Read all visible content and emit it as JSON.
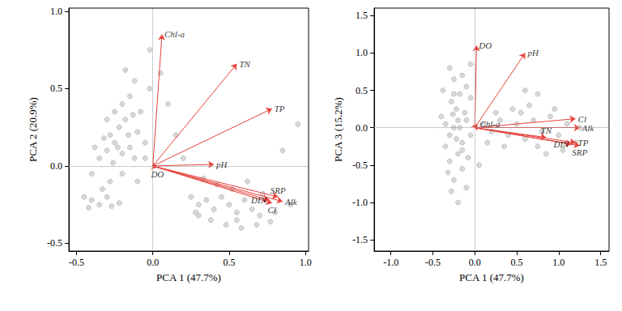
{
  "chart_data": [
    {
      "type": "scatter",
      "xlabel": "PCA 1 (47.7%)",
      "ylabel": "PCA 2 (20.9%)",
      "xlim": [
        -0.55,
        1.02
      ],
      "ylim": [
        -0.55,
        1.02
      ],
      "xticks": [
        -0.5,
        {
          "value": 0,
          "label": "0.0"
        },
        0.5,
        {
          "value": 1,
          "label": "1.0"
        }
      ],
      "yticks": [
        -0.5,
        {
          "value": 0,
          "label": "0.0"
        },
        0.5,
        {
          "value": 1,
          "label": "1.0"
        }
      ],
      "series": [
        {
          "type": "scatter",
          "marker": "circle",
          "color": "#d4d4d4",
          "x": [
            -0.3,
            -0.25,
            -0.2,
            -0.28,
            -0.15,
            -0.22,
            -0.18,
            -0.12,
            -0.26,
            -0.32,
            -0.1,
            -0.05,
            -0.2,
            -0.15,
            -0.08,
            -0.25,
            -0.3,
            -0.35,
            -0.38,
            -0.02,
            -0.12,
            -0.02,
            0.05,
            -0.18,
            -0.4,
            -0.35,
            -0.3,
            -0.42,
            -0.27,
            -0.22,
            -0.45,
            -0.33,
            -0.28,
            -0.4,
            -0.2,
            0.25,
            0.3,
            0.35,
            0.4,
            0.45,
            0.5,
            0.55,
            0.6,
            0.65,
            0.7,
            0.38,
            0.48,
            0.58,
            0.3,
            0.42,
            0.52,
            0.62,
            0.72,
            0.8,
            0.9,
            0.33,
            0.28,
            0.68,
            0.55,
            0.77,
            0.95,
            0.85,
            0.15,
            0.1,
            0.2,
            -0.1,
            -0.05,
            -0.16,
            -0.23,
            -0.13
          ],
          "y": [
            0.1,
            0.15,
            0.08,
            0.2,
            0.12,
            0.25,
            0.3,
            0.05,
            0.02,
            0.18,
            0.22,
            0.15,
            0.4,
            0.45,
            0.35,
            0.35,
            0.3,
            0.05,
            0.12,
            0.5,
            0.55,
            0.75,
            0.6,
            0.62,
            -0.22,
            -0.25,
            -0.2,
            -0.27,
            -0.26,
            -0.24,
            -0.2,
            -0.15,
            -0.1,
            -0.05,
            -0.05,
            -0.2,
            -0.25,
            -0.22,
            -0.28,
            -0.2,
            -0.25,
            -0.3,
            -0.22,
            -0.28,
            -0.32,
            -0.35,
            -0.38,
            -0.4,
            -0.32,
            -0.12,
            -0.15,
            -0.1,
            -0.18,
            -0.3,
            -0.25,
            -0.08,
            -0.3,
            -0.38,
            -0.35,
            -0.36,
            0.27,
            0.1,
            0.2,
            0.4,
            0.05,
            -0.1,
            0.05,
            0.2,
            0.12,
            0.33
          ]
        },
        {
          "type": "arrow",
          "color": "#e8413c",
          "names": [
            "Chl-a",
            "TN",
            "TP",
            "pH",
            "DO",
            "DIN",
            "SRP",
            "Cl",
            "Alk"
          ],
          "x": [
            0.06,
            0.55,
            0.78,
            0.4,
            0.03,
            0.76,
            0.82,
            0.78,
            0.85
          ],
          "y": [
            0.85,
            0.66,
            0.37,
            0.01,
            -0.01,
            -0.22,
            -0.2,
            -0.24,
            -0.23
          ]
        }
      ]
    },
    {
      "type": "scatter",
      "xlabel": "PCA 1 (47.7%)",
      "ylabel": "PCA 3 (15.2%)",
      "xlim": [
        -1.2,
        1.6
      ],
      "ylim": [
        -1.65,
        1.6
      ],
      "xticks": [
        {
          "value": -1,
          "label": "-1.0"
        },
        -0.5,
        {
          "value": 0,
          "label": "0.0"
        },
        0.5,
        {
          "value": 1,
          "label": "1.0"
        },
        1.5
      ],
      "yticks": [
        -1.5,
        {
          "value": -1,
          "label": "-1.0"
        },
        -0.5,
        {
          "value": 0,
          "label": "0.0"
        },
        0.5,
        {
          "value": 1,
          "label": "1.0"
        },
        1.5
      ],
      "series": [
        {
          "type": "scatter",
          "marker": "circle",
          "color": "#d4d4d4",
          "x": [
            -0.25,
            -0.2,
            -0.3,
            -0.15,
            -0.22,
            -0.28,
            -0.18,
            -0.1,
            -0.25,
            -0.05,
            -0.2,
            -0.3,
            -0.15,
            -0.25,
            -0.1,
            -0.35,
            -0.4,
            -0.12,
            -0.05,
            -0.32,
            -0.2,
            -0.05,
            -0.38,
            -0.15,
            -0.28,
            -0.08,
            -0.22,
            -0.35,
            -0.18,
            -0.26,
            0.1,
            0.2,
            0.3,
            0.4,
            0.5,
            0.6,
            0.7,
            0.8,
            0.9,
            1.0,
            1.1,
            1.2,
            0.35,
            0.55,
            0.75,
            0.95,
            0.65,
            0.45,
            1.05,
            0.15,
            0.25,
            0.85,
            1.25,
            0.6,
            0.75,
            -0.15,
            -0.25,
            -0.1,
            0.05,
            -0.3
          ],
          "y": [
            0.0,
            0.1,
            -0.1,
            -0.2,
            0.25,
            0.35,
            0.45,
            0.55,
            0.65,
            0.85,
            -0.35,
            -0.45,
            -0.55,
            -0.7,
            -0.8,
            -0.25,
            0.15,
            0.2,
            -0.1,
            -0.6,
            -1.0,
            0.4,
            0.5,
            0.7,
            -0.85,
            -0.4,
            -0.15,
            0.05,
            0.0,
            0.18,
            0.05,
            -0.05,
            0.1,
            -0.1,
            0.05,
            -0.15,
            0.1,
            -0.05,
            0.15,
            -0.1,
            0.05,
            -0.2,
            -0.25,
            0.2,
            -0.25,
            0.25,
            0.3,
            0.25,
            -0.3,
            -0.2,
            0.2,
            -0.35,
            0.0,
            0.5,
            0.45,
            -0.3,
            0.45,
            0.1,
            -0.5,
            0.8
          ]
        },
        {
          "type": "arrow",
          "color": "#e8413c",
          "names": [
            "DO",
            "pH",
            "Chl-a",
            "Cl",
            "Alk",
            "TN",
            "DIN",
            "TP",
            "SRP"
          ],
          "x": [
            0.02,
            0.6,
            0.03,
            1.2,
            1.25,
            0.85,
            1.15,
            1.2,
            1.25
          ],
          "y": [
            1.1,
            1.0,
            0.05,
            0.12,
            0.0,
            -0.13,
            -0.22,
            -0.2,
            -0.24
          ]
        }
      ]
    }
  ]
}
